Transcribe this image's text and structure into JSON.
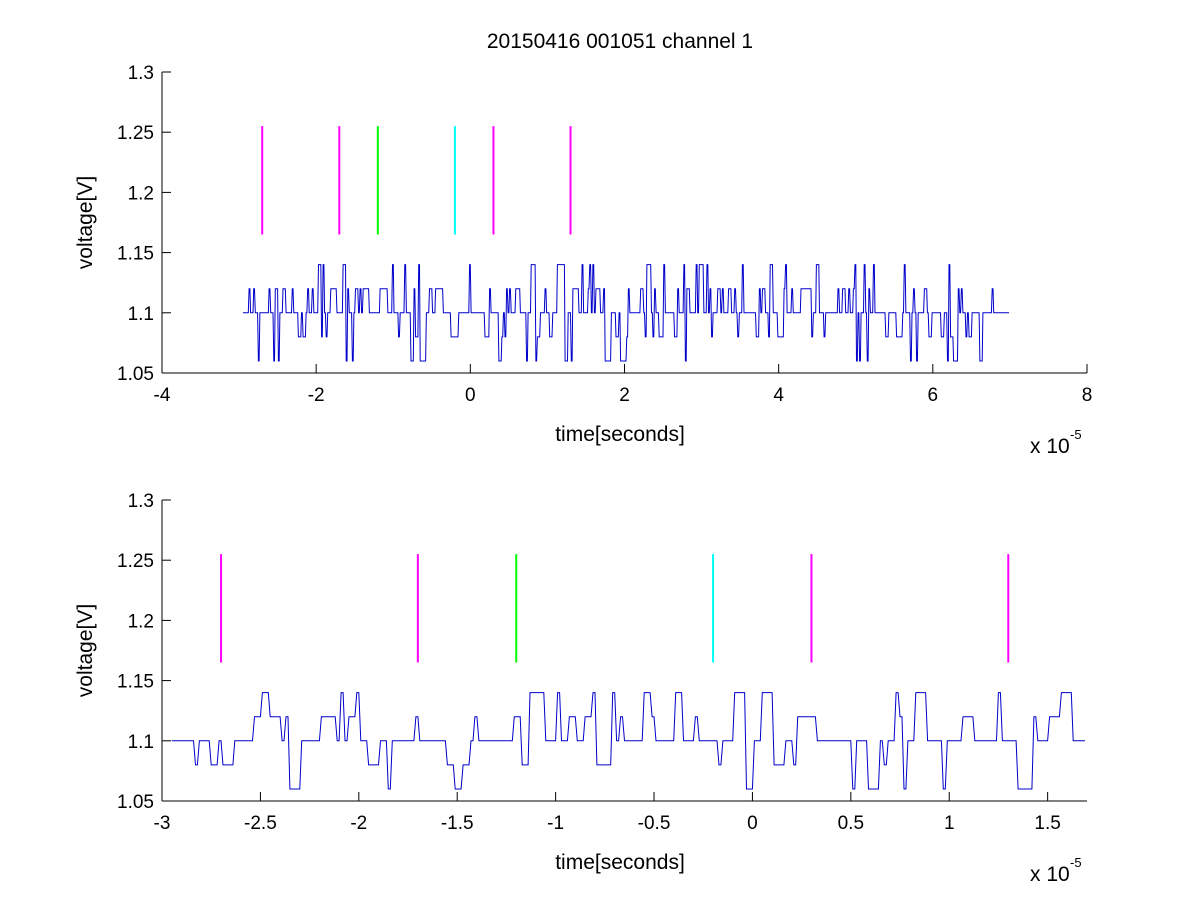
{
  "figure": {
    "title": "20150416 001051 channel 1"
  },
  "chart_data": [
    {
      "type": "line",
      "xlabel": "time[seconds]",
      "ylabel": "voltage[V]",
      "x_exponent_label": "x 10",
      "x_exponent": "-5",
      "xlim": [
        -4,
        8
      ],
      "ylim": [
        1.05,
        1.3
      ],
      "xticks": [
        -4,
        -2,
        0,
        2,
        4,
        6,
        8
      ],
      "xtick_labels": [
        "-4",
        "-2",
        "0",
        "2",
        "4",
        "6",
        "8"
      ],
      "yticks": [
        1.05,
        1.1,
        1.15,
        1.2,
        1.25,
        1.3
      ],
      "ytick_labels": [
        "1.05",
        "1.1",
        "1.15",
        "1.2",
        "1.25",
        "1.3"
      ],
      "grid": false,
      "signal": {
        "color": "#0000cc",
        "x_start": -2.95,
        "x_step": 0.02,
        "baseline": 1.1,
        "levels": [
          1.06,
          1.08,
          1.1,
          1.12,
          1.14
        ]
      },
      "markers": [
        {
          "x": -2.7,
          "y_bottom": 1.165,
          "y_top": 1.255,
          "color": "#ff00ff"
        },
        {
          "x": -1.7,
          "y_bottom": 1.165,
          "y_top": 1.255,
          "color": "#ff00ff"
        },
        {
          "x": -1.2,
          "y_bottom": 1.165,
          "y_top": 1.255,
          "color": "#00ff00"
        },
        {
          "x": -0.2,
          "y_bottom": 1.165,
          "y_top": 1.255,
          "color": "#00ffff"
        },
        {
          "x": 0.3,
          "y_bottom": 1.165,
          "y_top": 1.255,
          "color": "#ff00ff"
        },
        {
          "x": 1.3,
          "y_bottom": 1.165,
          "y_top": 1.255,
          "color": "#ff00ff"
        }
      ]
    },
    {
      "type": "line",
      "xlabel": "time[seconds]",
      "ylabel": "voltage[V]",
      "x_exponent_label": "x 10",
      "x_exponent": "-5",
      "xlim": [
        -3,
        1.7
      ],
      "ylim": [
        1.05,
        1.3
      ],
      "xticks": [
        -3,
        -2.5,
        -2,
        -1.5,
        -1,
        -0.5,
        0,
        0.5,
        1,
        1.5
      ],
      "xtick_labels": [
        "-3",
        "-2.5",
        "-2",
        "-1.5",
        "-1",
        "-0.5",
        "0",
        "0.5",
        "1",
        "1.5"
      ],
      "yticks": [
        1.05,
        1.1,
        1.15,
        1.2,
        1.25,
        1.3
      ],
      "ytick_labels": [
        "1.05",
        "1.1",
        "1.15",
        "1.2",
        "1.25",
        "1.3"
      ],
      "grid": false,
      "signal": {
        "color": "#0000cc",
        "x_start": -2.95,
        "x_step": 0.02,
        "baseline": 1.1,
        "levels": [
          1.06,
          1.08,
          1.1,
          1.12,
          1.14
        ]
      },
      "markers": [
        {
          "x": -2.7,
          "y_bottom": 1.165,
          "y_top": 1.255,
          "color": "#ff00ff"
        },
        {
          "x": -1.7,
          "y_bottom": 1.165,
          "y_top": 1.255,
          "color": "#ff00ff"
        },
        {
          "x": -1.2,
          "y_bottom": 1.165,
          "y_top": 1.255,
          "color": "#00ff00"
        },
        {
          "x": -0.2,
          "y_bottom": 1.165,
          "y_top": 1.255,
          "color": "#00ffff"
        },
        {
          "x": 0.3,
          "y_bottom": 1.165,
          "y_top": 1.255,
          "color": "#ff00ff"
        },
        {
          "x": 1.3,
          "y_bottom": 1.165,
          "y_top": 1.255,
          "color": "#ff00ff"
        }
      ]
    }
  ]
}
